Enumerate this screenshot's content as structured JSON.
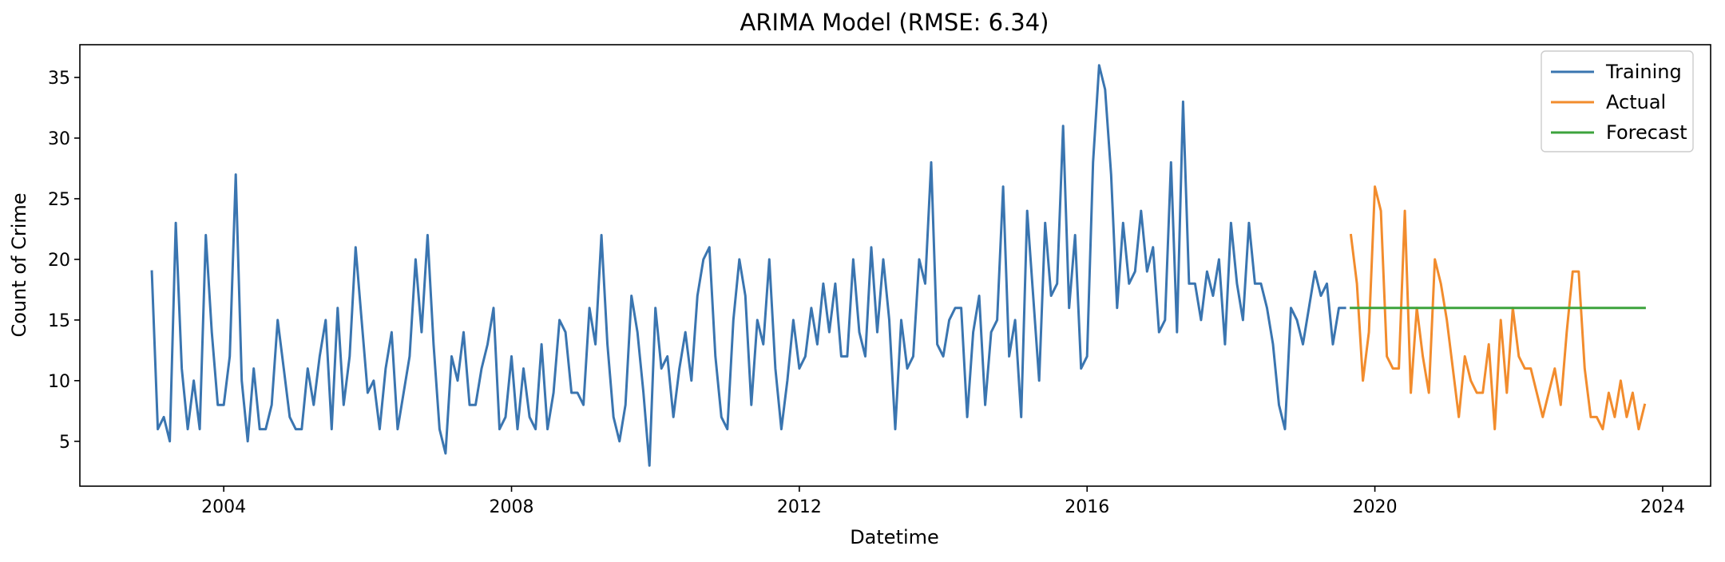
{
  "chart_data": {
    "type": "line",
    "title": "ARIMA Model (RMSE: 6.34)",
    "xlabel": "Datetime",
    "ylabel": "Count of Crime",
    "xlim": [
      "2002-01",
      "2024-09"
    ],
    "ylim": [
      1.3,
      37.7
    ],
    "x_ticks": [
      "2004",
      "2008",
      "2012",
      "2016",
      "2020",
      "2024"
    ],
    "y_ticks": [
      5,
      10,
      15,
      20,
      25,
      30,
      35
    ],
    "grid": false,
    "legend_position": "top-right",
    "colors": {
      "Training": "#3a75b0",
      "Actual": "#f28c2d",
      "Forecast": "#3da33d"
    },
    "series": [
      {
        "name": "Training",
        "start": "2003-01",
        "values": [
          19,
          6,
          7,
          5,
          23,
          11,
          6,
          10,
          6,
          22,
          14,
          8,
          8,
          12,
          27,
          10,
          5,
          11,
          6,
          6,
          8,
          15,
          11,
          7,
          6,
          6,
          11,
          8,
          12,
          15,
          6,
          16,
          8,
          12,
          21,
          15,
          9,
          10,
          6,
          11,
          14,
          6,
          9,
          12,
          20,
          14,
          22,
          13,
          6,
          4,
          12,
          10,
          14,
          8,
          8,
          11,
          13,
          16,
          6,
          7,
          12,
          6,
          11,
          7,
          6,
          13,
          6,
          9,
          15,
          14,
          9,
          9,
          8,
          16,
          13,
          22,
          13,
          7,
          5,
          8,
          17,
          14,
          9,
          3,
          16,
          11,
          12,
          7,
          11,
          14,
          10,
          17,
          20,
          21,
          12,
          7,
          6,
          15,
          20,
          17,
          8,
          15,
          13,
          20,
          11,
          6,
          10,
          15,
          11,
          12,
          16,
          13,
          18,
          14,
          18,
          12,
          12,
          20,
          14,
          12,
          21,
          14,
          20,
          15,
          6,
          15,
          11,
          12,
          20,
          18,
          28,
          13,
          12,
          15,
          16,
          16,
          7,
          14,
          17,
          8,
          14,
          15,
          26,
          12,
          15,
          7,
          24,
          17,
          10,
          23,
          17,
          18,
          31,
          16,
          22,
          11,
          12,
          28,
          36,
          34,
          27,
          16,
          23,
          18,
          19,
          24,
          19,
          21,
          14,
          15,
          28,
          14,
          33,
          18,
          18,
          15,
          19,
          17,
          20,
          13,
          23,
          18,
          15,
          23,
          18,
          18,
          16,
          13,
          8,
          6,
          16,
          15,
          13,
          16,
          19,
          17,
          18,
          13,
          16,
          16
        ]
      },
      {
        "name": "Actual",
        "start": "2019-09",
        "values": [
          22,
          18,
          10,
          14,
          26,
          24,
          12,
          11,
          11,
          24,
          9,
          16,
          12,
          9,
          20,
          18,
          15,
          11,
          7,
          12,
          10,
          9,
          9,
          13,
          6,
          15,
          9,
          16,
          12,
          11,
          11,
          9,
          7,
          9,
          11,
          8,
          14,
          19,
          19,
          11,
          7,
          7,
          6,
          9,
          7,
          10,
          7,
          9,
          6,
          8
        ]
      },
      {
        "name": "Forecast",
        "start": "2019-09",
        "values": [
          16,
          16,
          16,
          16,
          16,
          16,
          16,
          16,
          16,
          16,
          16,
          16,
          16,
          16,
          16,
          16,
          16,
          16,
          16,
          16,
          16,
          16,
          16,
          16,
          16,
          16,
          16,
          16,
          16,
          16,
          16,
          16,
          16,
          16,
          16,
          16,
          16,
          16,
          16,
          16,
          16,
          16,
          16,
          16,
          16,
          16,
          16,
          16,
          16,
          16
        ]
      }
    ]
  }
}
